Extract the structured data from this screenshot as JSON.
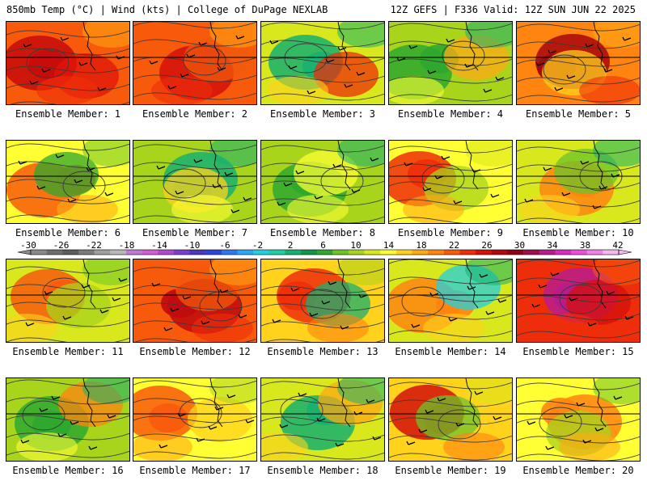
{
  "header": {
    "left": "850mb Temp (°C) | Wind (kts) | College of DuPage NEXLAB",
    "right": "12Z GEFS | F336 Valid: 12Z SUN JUN 22 2025"
  },
  "colorbar": {
    "labels": [
      "-30",
      "-26",
      "-22",
      "-18",
      "-14",
      "-10",
      "-6",
      "-2",
      "2",
      "6",
      "10",
      "14",
      "18",
      "22",
      "26",
      "30",
      "34",
      "38",
      "42"
    ],
    "colors": [
      "#8a8a8a",
      "#6e6e6e",
      "#5c5c5c",
      "#7b7b7b",
      "#a0a0a0",
      "#b9b9b9",
      "#c07ad6",
      "#d45cd6",
      "#b04ad0",
      "#7a3ed0",
      "#4a3ab8",
      "#2e46d8",
      "#2f78ee",
      "#2aa8f4",
      "#22d0e0",
      "#1ed0a8",
      "#18b070",
      "#12964a",
      "#2ea82e",
      "#6cc42a",
      "#a8d41c",
      "#d8e81c",
      "#ffff33",
      "#ffd21c",
      "#ffaa14",
      "#ff8410",
      "#f85a0c",
      "#ee2e0a",
      "#d4100c",
      "#b00814",
      "#8c0418",
      "#9c1050",
      "#b81c8c",
      "#d82cc0",
      "#ee50dc",
      "#f480ea",
      "#f6b6f2"
    ]
  },
  "panels": [
    {
      "label": "Ensemble Member: 1",
      "temp": 24,
      "tint": 3,
      "spot": "#c80a0a",
      "spot2": "#e0160a"
    },
    {
      "label": "Ensemble Member: 2",
      "temp": 24,
      "tint": 2,
      "spot": "#d4100c",
      "spot2": "#f05a0c"
    },
    {
      "label": "Ensemble Member: 3",
      "temp": 14,
      "tint": 0,
      "spot": "#18b070",
      "spot2": "#ee2e0a"
    },
    {
      "label": "Ensemble Member: 4",
      "temp": 12,
      "tint": 1,
      "spot": "#2ea82e",
      "spot2": "#ffaa14"
    },
    {
      "label": "Ensemble Member: 5",
      "temp": 22,
      "tint": 4,
      "spot": "#a8060a",
      "spot2": "#ffd21c"
    },
    {
      "label": "Ensemble Member: 6",
      "temp": 16,
      "tint": 1,
      "spot": "#f85a0c",
      "spot2": "#2ea82e"
    },
    {
      "label": "Ensemble Member: 7",
      "temp": 12,
      "tint": 0,
      "spot": "#18b070",
      "spot2": "#ffd21c"
    },
    {
      "label": "Ensemble Member: 8",
      "temp": 12,
      "tint": 2,
      "spot": "#2ea82e",
      "spot2": "#ffff33"
    },
    {
      "label": "Ensemble Member: 9",
      "temp": 17,
      "tint": 3,
      "spot": "#ee2e0a",
      "spot2": "#a8d41c"
    },
    {
      "label": "Ensemble Member: 10",
      "temp": 14,
      "tint": 1,
      "spot": "#ff8410",
      "spot2": "#6cc42a"
    },
    {
      "label": "Ensemble Member: 11",
      "temp": 15,
      "tint": 2,
      "spot": "#f85a0c",
      "spot2": "#a8d41c"
    },
    {
      "label": "Ensemble Member: 12",
      "temp": 24,
      "tint": 3,
      "spot": "#c00a0e",
      "spot2": "#f05a0c"
    },
    {
      "label": "Ensemble Member: 13",
      "temp": 18,
      "tint": 1,
      "spot": "#ee2e0a",
      "spot2": "#18b070"
    },
    {
      "label": "Ensemble Member: 14",
      "temp": 14,
      "tint": 0,
      "spot": "#ff8410",
      "spot2": "#22d0e0"
    },
    {
      "label": "Ensemble Member: 15",
      "temp": 26,
      "tint": 4,
      "spot": "#b81c8c",
      "spot2": "#d4100c"
    },
    {
      "label": "Ensemble Member: 16",
      "temp": 13,
      "tint": 1,
      "spot": "#2ea82e",
      "spot2": "#ff8410"
    },
    {
      "label": "Ensemble Member: 17",
      "temp": 17,
      "tint": 2,
      "spot": "#f85a0c",
      "spot2": "#ffd21c"
    },
    {
      "label": "Ensemble Member: 18",
      "temp": 14,
      "tint": 0,
      "spot": "#18b070",
      "spot2": "#ffaa14"
    },
    {
      "label": "Ensemble Member: 19",
      "temp": 18,
      "tint": 3,
      "spot": "#d4100c",
      "spot2": "#6cc42a"
    },
    {
      "label": "Ensemble Member: 20",
      "temp": 16,
      "tint": 1,
      "spot": "#ff8410",
      "spot2": "#a8d41c"
    }
  ]
}
